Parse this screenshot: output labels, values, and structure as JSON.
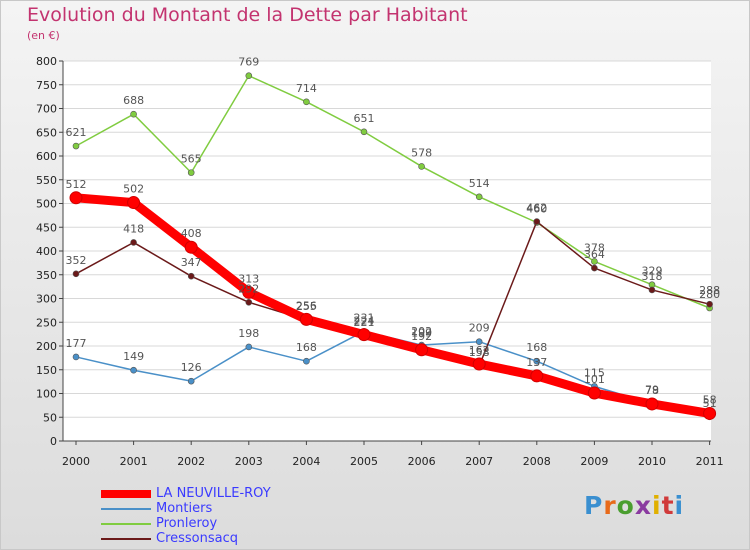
{
  "title": "Evolution du Montant de la Dette par Habitant",
  "subtitle": "(en €)",
  "logo": {
    "text": "Proxiti",
    "letter_colors": [
      "#3a8fd0",
      "#e86a1a",
      "#4a9e2f",
      "#8a3aa0",
      "#e0b000",
      "#d03a3a",
      "#3a8fd0"
    ]
  },
  "chart_data": {
    "type": "line",
    "title": "Evolution du Montant de la Dette par Habitant",
    "ylabel": "(en €)",
    "ylim": [
      0,
      800
    ],
    "yticks": [
      0,
      50,
      100,
      150,
      200,
      250,
      300,
      350,
      400,
      450,
      500,
      550,
      600,
      650,
      700,
      750,
      800
    ],
    "x": [
      "2000",
      "2001",
      "2002",
      "2003",
      "2004",
      "2005",
      "2006",
      "2007",
      "2008",
      "2009",
      "2010",
      "2011"
    ],
    "grid": "horizontal",
    "legend_position": "bottom-left",
    "series": [
      {
        "name": "LA NEUVILLE-ROY",
        "color": "#ff0000",
        "values": [
          512,
          502,
          408,
          313,
          256,
          224,
          192,
          162,
          137,
          101,
          78,
          58
        ]
      },
      {
        "name": "Montiers",
        "color": "#4a90c8",
        "values": [
          177,
          149,
          126,
          198,
          168,
          231,
          202,
          209,
          168,
          115,
          79,
          51
        ]
      },
      {
        "name": "Pronleroy",
        "color": "#80cc40",
        "values": [
          621,
          688,
          565,
          769,
          714,
          651,
          578,
          514,
          460,
          378,
          329,
          280
        ]
      },
      {
        "name": "Cressonsacq",
        "color": "#6b1a1a",
        "values": [
          352,
          418,
          347,
          292,
          255,
          221,
          199,
          158,
          462,
          364,
          318,
          288
        ]
      }
    ]
  }
}
